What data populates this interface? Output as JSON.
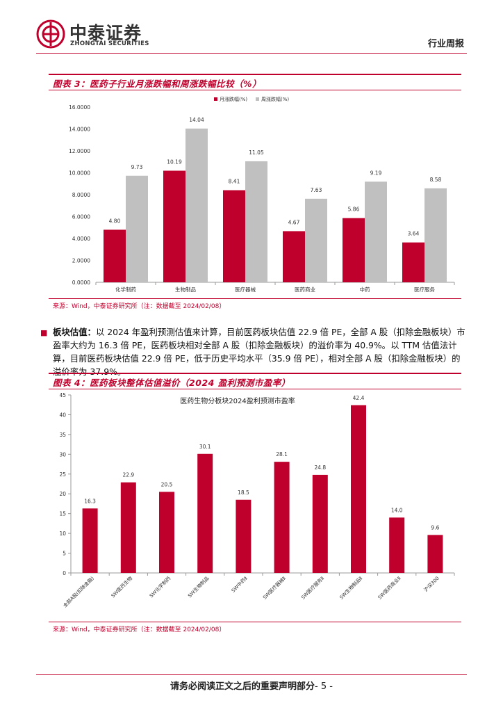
{
  "header": {
    "company_cn": "中泰证券",
    "company_en": "ZHONGTAI SECURITIES",
    "report_type": "行业周报"
  },
  "figure3": {
    "title": "图表 3：医药子行业月涨跌幅和周涨跌幅比较（%）",
    "source": "来源：Wind，中泰证券研究所（注：数据截至 2024/02/08）",
    "chart_data": {
      "type": "bar",
      "categories": [
        "化学制药",
        "生物制品",
        "医疗器械",
        "医药商业",
        "中药",
        "医疗服务"
      ],
      "series": [
        {
          "name": "月涨跌幅(%)",
          "values": [
            4.8,
            10.19,
            8.41,
            4.67,
            5.86,
            3.64
          ],
          "labels": [
            "4.80",
            "10.19",
            "8.41",
            "4.67",
            "5.86",
            "3.64"
          ],
          "color": "#c0002c"
        },
        {
          "name": "周涨跌幅(%)",
          "values": [
            9.73,
            14.04,
            11.05,
            7.63,
            9.19,
            8.58
          ],
          "labels": [
            "9.73",
            "14.04",
            "11.05",
            "7.63",
            "9.19",
            "8.58"
          ],
          "color": "#c0c0c0"
        }
      ],
      "ylim": [
        0,
        16
      ],
      "yticks": [
        "0.0000",
        "2.0000",
        "4.0000",
        "6.0000",
        "8.0000",
        "10.0000",
        "12.0000",
        "14.0000",
        "16.0000"
      ],
      "legend_position": "top"
    }
  },
  "paragraph": {
    "bullet": "■",
    "label": "板块估值：",
    "text": "以 2024 年盈利预测估值来计算，目前医药板块估值 22.9 倍 PE，全部 A 股（扣除金融板块）市盈率大约为 16.3 倍 PE，医药板块相对全部 A 股（扣除金融板块）的溢价率为 40.9%。以 TTM 估值法计算，目前医药板块估值 22.9 倍 PE，低于历史平均水平（35.9 倍 PE），相对全部 A 股（扣除金融板块）的溢价率为 37.9%。"
  },
  "figure4": {
    "title": "图表 4：医药板块整体估值溢价（2024 盈利预测市盈率）",
    "source": "来源：Wind，中泰证券研究所（注：数据截至 2024/02/08）",
    "chart_data": {
      "type": "bar",
      "title": "医药生物分板块2024盈利预测市盈率",
      "categories": [
        "全部A股(扣除金融)",
        "SW医药生物",
        "SW化学制药",
        "SW生物制品",
        "SW中药Ⅱ",
        "SW医疗器械Ⅱ",
        "SW医疗服务Ⅱ",
        "SW生物制品Ⅱ",
        "SW医药商业Ⅱ",
        "沪深300"
      ],
      "values": [
        16.3,
        22.9,
        20.5,
        30.1,
        18.5,
        28.1,
        24.8,
        42.4,
        14.0,
        9.6
      ],
      "labels": [
        "16.3",
        "22.9",
        "20.5",
        "30.1",
        "18.5",
        "28.1",
        "24.8",
        "42.4",
        "14.0",
        "9.6"
      ],
      "ylim": [
        0,
        45
      ],
      "yticks": [
        "0",
        "5",
        "10",
        "15",
        "20",
        "25",
        "30",
        "35",
        "40",
        "45"
      ],
      "color": "#c0002c"
    }
  },
  "footer": {
    "text": "请务必阅读正文之后的重要声明部分",
    "page": "- 5 -"
  }
}
